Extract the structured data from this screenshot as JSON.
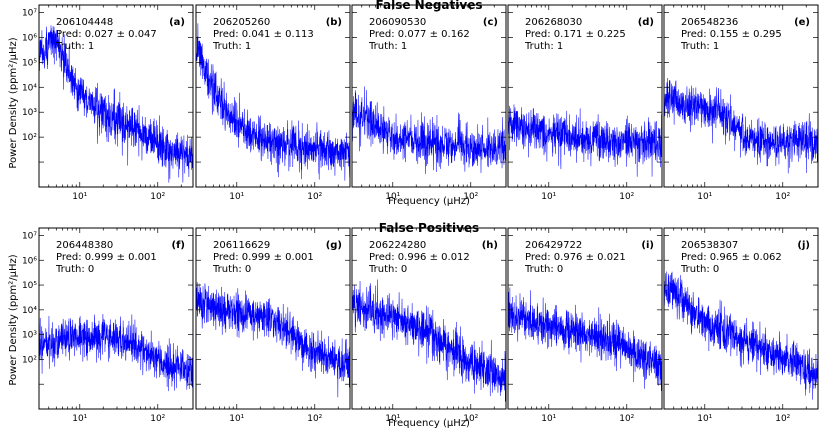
{
  "figure": {
    "row_titles": [
      "False Negatives",
      "False Positives"
    ],
    "ylabel": "Power Density (ppm$^2$/$\\mu$Hz)",
    "ylabel_text": "Power Density (ppm²/µHz)",
    "xlabel_text": "Frequency (µHz)"
  },
  "chart_data": [
    {
      "type": "line",
      "panel": "(a)",
      "id": "206104448",
      "pred": "Pred: 0.027 ± 0.047",
      "truth": "Truth: 1",
      "xscale": "log",
      "yscale": "log",
      "xlim": [
        3,
        283
      ],
      "ylim": [
        1,
        20000000
      ],
      "series": [
        {
          "color": "#0000ff",
          "x": [
            3.2,
            4,
            5,
            6,
            8,
            10,
            14,
            20,
            30,
            50,
            80,
            120,
            180,
            280
          ],
          "y": [
            300000,
            800000,
            1000000,
            200000,
            30000,
            8000,
            3000,
            1200,
            600,
            250,
            120,
            60,
            30,
            20
          ]
        }
      ]
    },
    {
      "type": "line",
      "panel": "(b)",
      "id": "206205260",
      "pred": "Pred: 0.041 ± 0.113",
      "truth": "Truth: 1",
      "xscale": "log",
      "yscale": "log",
      "xlim": [
        3,
        283
      ],
      "ylim": [
        1,
        20000000
      ],
      "series": [
        {
          "color": "#0000ff",
          "x": [
            3.2,
            3.6,
            4.2,
            5,
            6,
            8,
            10,
            14,
            20,
            30,
            50,
            80,
            120,
            180,
            280
          ],
          "y": [
            500000,
            200000,
            40000,
            10000,
            3000,
            1000,
            500,
            200,
            120,
            80,
            60,
            50,
            40,
            35,
            30
          ]
        }
      ]
    },
    {
      "type": "line",
      "panel": "(c)",
      "id": "206090530",
      "pred": "Pred: 0.077 ± 0.162",
      "truth": "Truth: 1",
      "xscale": "log",
      "yscale": "log",
      "xlim": [
        3,
        283
      ],
      "ylim": [
        1,
        20000000
      ],
      "series": [
        {
          "color": "#0000ff",
          "x": [
            3.2,
            5,
            8,
            12,
            20,
            40,
            80,
            150,
            280
          ],
          "y": [
            1500,
            500,
            200,
            120,
            90,
            70,
            60,
            55,
            50
          ]
        }
      ]
    },
    {
      "type": "line",
      "panel": "(d)",
      "id": "206268030",
      "pred": "Pred: 0.171 ± 0.225",
      "truth": "Truth: 1",
      "xscale": "log",
      "yscale": "log",
      "xlim": [
        3,
        283
      ],
      "ylim": [
        1,
        20000000
      ],
      "series": [
        {
          "color": "#0000ff",
          "x": [
            3.2,
            5,
            8,
            12,
            20,
            40,
            80,
            150,
            280
          ],
          "y": [
            600,
            300,
            200,
            150,
            120,
            100,
            90,
            85,
            80
          ]
        }
      ]
    },
    {
      "type": "line",
      "panel": "(e)",
      "id": "206548236",
      "pred": "Pred: 0.155 ± 0.295",
      "truth": "Truth: 1",
      "xscale": "log",
      "yscale": "log",
      "xlim": [
        3,
        283
      ],
      "ylim": [
        1,
        20000000
      ],
      "series": [
        {
          "color": "#0000ff",
          "x": [
            3.2,
            5,
            7,
            10,
            14,
            20,
            30,
            50,
            80,
            150,
            280
          ],
          "y": [
            5000,
            3000,
            2000,
            1800,
            1500,
            800,
            200,
            100,
            80,
            70,
            60
          ]
        }
      ]
    },
    {
      "type": "line",
      "panel": "(f)",
      "id": "206448380",
      "pred": "Pred: 0.999 ± 0.001",
      "truth": "Truth: 0",
      "xscale": "log",
      "yscale": "log",
      "xlim": [
        3,
        283
      ],
      "ylim": [
        1,
        20000000
      ],
      "series": [
        {
          "color": "#0000ff",
          "x": [
            3.2,
            5,
            8,
            12,
            20,
            30,
            50,
            80,
            150,
            280
          ],
          "y": [
            600,
            700,
            1000,
            1200,
            1200,
            800,
            500,
            200,
            80,
            50
          ]
        }
      ]
    },
    {
      "type": "line",
      "panel": "(g)",
      "id": "206116629",
      "pred": "Pred: 0.999 ± 0.001",
      "truth": "Truth: 0",
      "xscale": "log",
      "yscale": "log",
      "xlim": [
        3,
        283
      ],
      "ylim": [
        1,
        20000000
      ],
      "series": [
        {
          "color": "#0000ff",
          "x": [
            3.2,
            5,
            8,
            12,
            20,
            30,
            50,
            80,
            150,
            280
          ],
          "y": [
            30000,
            20000,
            12000,
            9000,
            7000,
            5000,
            1500,
            400,
            120,
            60
          ]
        }
      ]
    },
    {
      "type": "line",
      "panel": "(h)",
      "id": "206224280",
      "pred": "Pred: 0.996 ± 0.012",
      "truth": "Truth: 0",
      "xscale": "log",
      "yscale": "log",
      "xlim": [
        3,
        283
      ],
      "ylim": [
        1,
        20000000
      ],
      "series": [
        {
          "color": "#0000ff",
          "x": [
            3.2,
            5,
            8,
            12,
            20,
            30,
            50,
            80,
            150,
            280
          ],
          "y": [
            20000,
            15000,
            8000,
            5000,
            3000,
            1500,
            400,
            150,
            60,
            20
          ]
        }
      ]
    },
    {
      "type": "line",
      "panel": "(i)",
      "id": "206429722",
      "pred": "Pred: 0.976 ± 0.021",
      "truth": "Truth: 0",
      "xscale": "log",
      "yscale": "log",
      "xlim": [
        3,
        283
      ],
      "ylim": [
        1,
        20000000
      ],
      "series": [
        {
          "color": "#0000ff",
          "x": [
            3.2,
            5,
            8,
            12,
            20,
            30,
            50,
            80,
            150,
            280
          ],
          "y": [
            8000,
            5000,
            3000,
            2500,
            2000,
            1500,
            1000,
            600,
            200,
            80
          ]
        }
      ]
    },
    {
      "type": "line",
      "panel": "(j)",
      "id": "206538307",
      "pred": "Pred: 0.965 ± 0.062",
      "truth": "Truth: 0",
      "xscale": "log",
      "yscale": "log",
      "xlim": [
        3,
        283
      ],
      "ylim": [
        1,
        20000000
      ],
      "series": [
        {
          "color": "#0000ff",
          "x": [
            3.2,
            4,
            5,
            6,
            8,
            12,
            20,
            30,
            50,
            80,
            150,
            280
          ],
          "y": [
            50000,
            80000,
            60000,
            20000,
            8000,
            3000,
            1500,
            800,
            400,
            200,
            80,
            30
          ]
        }
      ]
    }
  ],
  "ticks": {
    "y": [
      {
        "v": 100,
        "label": "10²"
      },
      {
        "v": 1000,
        "label": "10³"
      },
      {
        "v": 10000,
        "label": "10⁴"
      },
      {
        "v": 100000,
        "label": "10⁵"
      },
      {
        "v": 1000000,
        "label": "10⁶"
      },
      {
        "v": 10000000,
        "label": "10⁷"
      }
    ],
    "x": [
      {
        "v": 10,
        "label": "10¹"
      },
      {
        "v": 100,
        "label": "10²"
      }
    ]
  }
}
